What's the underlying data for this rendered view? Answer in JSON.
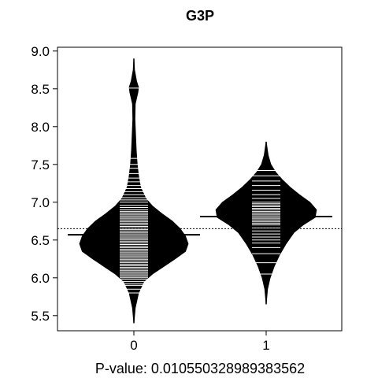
{
  "chart_data": {
    "type": "beanplot",
    "title": "G3P",
    "xlabel": "P-value: 0.010550328989383562",
    "ylabel": "",
    "categories": [
      "0",
      "1"
    ],
    "ylim": [
      5.3,
      9.05
    ],
    "yticks": [
      "5.5",
      "6.0",
      "6.5",
      "7.0",
      "7.5",
      "8.0",
      "8.5",
      "9.0"
    ],
    "ytick_values": [
      5.5,
      6.0,
      6.5,
      7.0,
      7.5,
      8.0,
      8.5,
      9.0
    ],
    "overall_mean": 6.65,
    "grid": false,
    "colors": {
      "bean": "#000000",
      "points": "#ffffff",
      "axis": "#000000",
      "background": "#ffffff"
    },
    "beans": [
      {
        "category": "0",
        "mean": 6.57,
        "density": [
          [
            5.4,
            0.0
          ],
          [
            5.6,
            0.02
          ],
          [
            5.8,
            0.07
          ],
          [
            5.95,
            0.15
          ],
          [
            6.05,
            0.28
          ],
          [
            6.15,
            0.45
          ],
          [
            6.25,
            0.62
          ],
          [
            6.35,
            0.78
          ],
          [
            6.45,
            0.82
          ],
          [
            6.55,
            0.78
          ],
          [
            6.65,
            0.7
          ],
          [
            6.75,
            0.58
          ],
          [
            6.85,
            0.42
          ],
          [
            6.95,
            0.28
          ],
          [
            7.05,
            0.18
          ],
          [
            7.2,
            0.1
          ],
          [
            7.35,
            0.07
          ],
          [
            7.5,
            0.05
          ],
          [
            7.7,
            0.035
          ],
          [
            7.9,
            0.025
          ],
          [
            8.1,
            0.015
          ],
          [
            8.3,
            0.02
          ],
          [
            8.45,
            0.06
          ],
          [
            8.52,
            0.07
          ],
          [
            8.6,
            0.04
          ],
          [
            8.75,
            0.01
          ],
          [
            8.9,
            0.0
          ]
        ],
        "points": [
          5.8,
          5.85,
          5.9,
          5.92,
          5.95,
          5.98,
          6.0,
          6.02,
          6.04,
          6.06,
          6.08,
          6.1,
          6.12,
          6.14,
          6.16,
          6.18,
          6.2,
          6.22,
          6.24,
          6.26,
          6.28,
          6.3,
          6.32,
          6.34,
          6.36,
          6.38,
          6.4,
          6.42,
          6.44,
          6.46,
          6.48,
          6.5,
          6.52,
          6.54,
          6.56,
          6.58,
          6.6,
          6.62,
          6.64,
          6.66,
          6.68,
          6.7,
          6.72,
          6.74,
          6.76,
          6.78,
          6.8,
          6.82,
          6.84,
          6.86,
          6.88,
          6.9,
          6.93,
          6.96,
          7.0,
          7.03,
          7.06,
          7.1,
          7.14,
          7.18,
          7.22,
          7.27,
          7.32,
          7.38,
          7.45,
          7.5,
          7.58,
          8.51
        ]
      },
      {
        "category": "1",
        "mean": 6.81,
        "density": [
          [
            5.65,
            0.0
          ],
          [
            5.85,
            0.02
          ],
          [
            6.0,
            0.06
          ],
          [
            6.15,
            0.12
          ],
          [
            6.3,
            0.2
          ],
          [
            6.45,
            0.3
          ],
          [
            6.6,
            0.42
          ],
          [
            6.7,
            0.56
          ],
          [
            6.8,
            0.74
          ],
          [
            6.9,
            0.76
          ],
          [
            7.0,
            0.66
          ],
          [
            7.1,
            0.5
          ],
          [
            7.2,
            0.36
          ],
          [
            7.3,
            0.24
          ],
          [
            7.4,
            0.14
          ],
          [
            7.5,
            0.07
          ],
          [
            7.62,
            0.03
          ],
          [
            7.8,
            0.0
          ]
        ],
        "points": [
          6.05,
          6.2,
          6.32,
          6.4,
          6.46,
          6.5,
          6.54,
          6.58,
          6.62,
          6.66,
          6.7,
          6.72,
          6.74,
          6.76,
          6.78,
          6.8,
          6.82,
          6.84,
          6.86,
          6.88,
          6.9,
          6.92,
          6.94,
          6.96,
          6.98,
          7.0,
          7.05,
          7.1,
          7.16,
          7.22,
          7.28,
          7.35,
          7.42
        ]
      }
    ]
  }
}
